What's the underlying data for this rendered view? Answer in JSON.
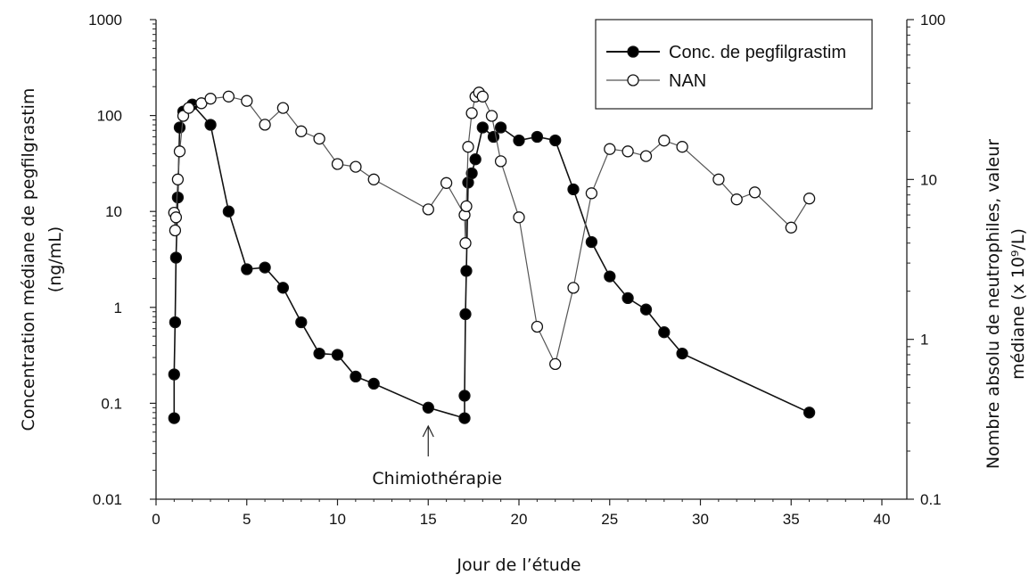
{
  "chart_data": {
    "type": "line",
    "xlabel": "Jour de l’étude",
    "ylabel_left": "Concentration médiane de pegfilgrastim (ng/mL)",
    "ylabel_left_lines": [
      "Concentration médiane de pegfilgrastim",
      "(ng/mL)"
    ],
    "ylabel_right": "Nombre absolu de neutrophiles, valeur médiane (x 10⁹/L)",
    "ylabel_right_lines": [
      "Nombre absolu de neutrophiles, valeur",
      "médiane (x 10⁹/L)"
    ],
    "xlim": [
      0,
      40
    ],
    "x_ticks": [
      0,
      5,
      10,
      15,
      20,
      25,
      30,
      35,
      40
    ],
    "ylim_left": [
      0.01,
      1000
    ],
    "y_ticks_left": [
      0.01,
      0.1,
      1,
      10,
      100,
      1000
    ],
    "y_tick_labels_left": [
      "0.01",
      "0.1",
      "1",
      "10",
      "100",
      "1000"
    ],
    "ylim_right": [
      0.1,
      100
    ],
    "y_ticks_right": [
      0.1,
      1,
      10,
      100
    ],
    "y_tick_labels_right": [
      "0.1",
      "1",
      "10",
      "100"
    ],
    "scale": "log",
    "grid": false,
    "legend_position": "top-right",
    "annotation": {
      "text": "Chimiothérapie",
      "x": 15
    },
    "series": [
      {
        "name": "Conc. de pegfilgrastim",
        "axis": "left",
        "marker": "filled-circle",
        "x": [
          1,
          1,
          1.05,
          1.1,
          1.2,
          1.3,
          1.5,
          2,
          3,
          4,
          5,
          6,
          7,
          8,
          9,
          10,
          11,
          12,
          15,
          17,
          17,
          17.05,
          17.1,
          17.2,
          17.4,
          17.6,
          18,
          18.6,
          19,
          20,
          21,
          22,
          23,
          24,
          25,
          26,
          27,
          28,
          29,
          36
        ],
        "y": [
          0.07,
          0.2,
          0.7,
          3.3,
          14,
          75,
          110,
          130,
          80,
          10,
          2.5,
          2.6,
          1.6,
          0.7,
          0.33,
          0.32,
          0.19,
          0.16,
          0.09,
          0.07,
          0.12,
          0.85,
          2.4,
          20,
          25,
          35,
          75,
          60,
          75,
          55,
          60,
          55,
          17,
          4.8,
          2.1,
          1.25,
          0.95,
          0.55,
          0.33,
          0.08
        ]
      },
      {
        "name": "NAN",
        "axis": "right",
        "marker": "open-circle",
        "x": [
          1,
          1.05,
          1.1,
          1.2,
          1.3,
          1.5,
          1.8,
          2.5,
          3,
          4,
          5,
          6,
          7,
          8,
          9,
          10,
          11,
          12,
          15,
          16,
          17,
          17.05,
          17.1,
          17.2,
          17.4,
          17.6,
          17.8,
          18,
          18.5,
          19,
          20,
          21,
          22,
          23,
          24,
          25,
          26,
          27,
          28,
          29,
          31,
          32,
          33,
          35,
          36
        ],
        "y": [
          6.2,
          4.8,
          5.8,
          10,
          15,
          25,
          28,
          30,
          32,
          33,
          31,
          22,
          28,
          20,
          18,
          12.5,
          12,
          10,
          6.5,
          9.5,
          6,
          4,
          6.8,
          16,
          26,
          33,
          35,
          33,
          25,
          13,
          5.8,
          1.2,
          0.7,
          2.1,
          8.2,
          15.5,
          15,
          14,
          17.5,
          16,
          10,
          7.5,
          8.3,
          5,
          7.6
        ]
      }
    ]
  }
}
